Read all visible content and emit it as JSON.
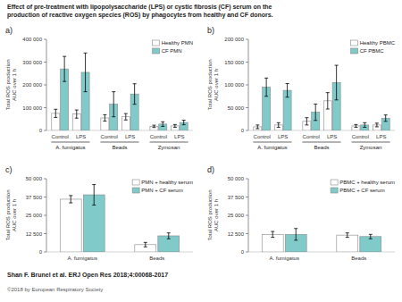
{
  "title": "Effect of pre-treatment with lipopolysaccharide (LPS) or cystic fibrosis (CF) serum on the",
  "subtitle": "production of reactive oxygen species (ROS) by phagocytes from healthy and CF donors.",
  "annotations": [
    "Shan F. Brunel et al. ERJ Open Res 2018;4:00068-2017",
    "©2018 by European Respiratory Society"
  ],
  "chart_data": [
    {
      "type": "bar",
      "title": "a)",
      "ylabel": "Total ROS production\nAUC over 1 h",
      "categories": [
        "Control",
        "LPS",
        "Control",
        "LPS",
        "Control",
        "LPS"
      ],
      "groups": [
        "A. fumigatus",
        "Beads",
        "Zymosan"
      ],
      "series": [
        {
          "name": "Healthy PMN",
          "color": "#FFFFFF",
          "values": [
            75000,
            72000,
            55000,
            60000,
            18000,
            20000
          ],
          "errors": [
            18000,
            18000,
            14000,
            14000,
            5000,
            6000
          ]
        },
        {
          "name": "CF PMN",
          "color": "#80CACA",
          "values": [
            270000,
            255000,
            115000,
            160000,
            28000,
            35000
          ],
          "errors": [
            55000,
            85000,
            55000,
            45000,
            10000,
            10000
          ]
        }
      ],
      "ylim": [
        0,
        400000
      ],
      "yticks": [
        0,
        {
          "value": 100000,
          "label": "100 000"
        },
        {
          "value": 200000,
          "label": "200 000"
        },
        {
          "value": 300000,
          "label": "300 000"
        },
        {
          "value": 400000,
          "label": "400 000"
        }
      ],
      "grid": false,
      "legend": "upper right"
    },
    {
      "type": "bar",
      "title": "b)",
      "ylabel": "Total ROS production\nAUC over 1 h",
      "categories": [
        "Control",
        "LPS",
        "Control",
        "LPS",
        "Control",
        "LPS"
      ],
      "groups": [
        "A. fumigatus",
        "Beads",
        "Zymosan"
      ],
      "series": [
        {
          "name": "Healthy PBMC",
          "color": "#FFFFFF",
          "values": [
            8000,
            12000,
            20000,
            65000,
            10000,
            12000
          ],
          "errors": [
            4000,
            5000,
            8000,
            18000,
            3000,
            4000
          ]
        },
        {
          "name": "CF PBMC",
          "color": "#80CACA",
          "values": [
            95000,
            88000,
            40000,
            105000,
            12000,
            27000
          ],
          "errors": [
            20000,
            15000,
            18000,
            38000,
            5000,
            7000
          ]
        }
      ],
      "ylim": [
        0,
        200000
      ],
      "yticks": [
        0,
        {
          "value": 50000,
          "label": "50 000"
        },
        {
          "value": 100000,
          "label": "100 000"
        },
        {
          "value": 150000,
          "label": "150 000"
        },
        {
          "value": 200000,
          "label": "200 000"
        }
      ],
      "grid": false,
      "legend": "upper right"
    },
    {
      "type": "bar",
      "title": "c)",
      "ylabel": "Total ROS production\nAUC over 1 h",
      "categories": [
        "A. fumigatus",
        "Beads"
      ],
      "series": [
        {
          "name": "PMN + healthy serum",
          "color": "#FFFFFF",
          "values": [
            36000,
            5000
          ],
          "errors": [
            2500,
            1500
          ]
        },
        {
          "name": "PMN + CF serum",
          "color": "#80CACA",
          "values": [
            39000,
            11000
          ],
          "errors": [
            7000,
            2000
          ]
        }
      ],
      "ylim": [
        0,
        50000
      ],
      "yticks": [
        0,
        {
          "value": 12500,
          "label": "12 500"
        },
        {
          "value": 25000,
          "label": "25 000"
        },
        {
          "value": 37500,
          "label": "37 500"
        },
        {
          "value": 50000,
          "label": "50 000"
        }
      ],
      "grid": false,
      "legend": "upper right"
    },
    {
      "type": "bar",
      "title": "d)",
      "ylabel": "Total ROS production\nAUC over 1 h",
      "categories": [
        "A. fumigatus",
        "Beads"
      ],
      "series": [
        {
          "name": "PBMC + healthy serum",
          "color": "#FFFFFF",
          "values": [
            12000,
            11500
          ],
          "errors": [
            2000,
            1500
          ]
        },
        {
          "name": "PBMC + CF serum",
          "color": "#80CACA",
          "values": [
            12000,
            10500
          ],
          "errors": [
            4000,
            1500
          ]
        }
      ],
      "ylim": [
        0,
        50000
      ],
      "yticks": [
        0,
        {
          "value": 12500,
          "label": "12 500"
        },
        {
          "value": 25000,
          "label": "25 000"
        },
        {
          "value": 37500,
          "label": "37 500"
        },
        {
          "value": 50000,
          "label": "50 000"
        }
      ],
      "grid": false,
      "legend": "upper right"
    }
  ]
}
